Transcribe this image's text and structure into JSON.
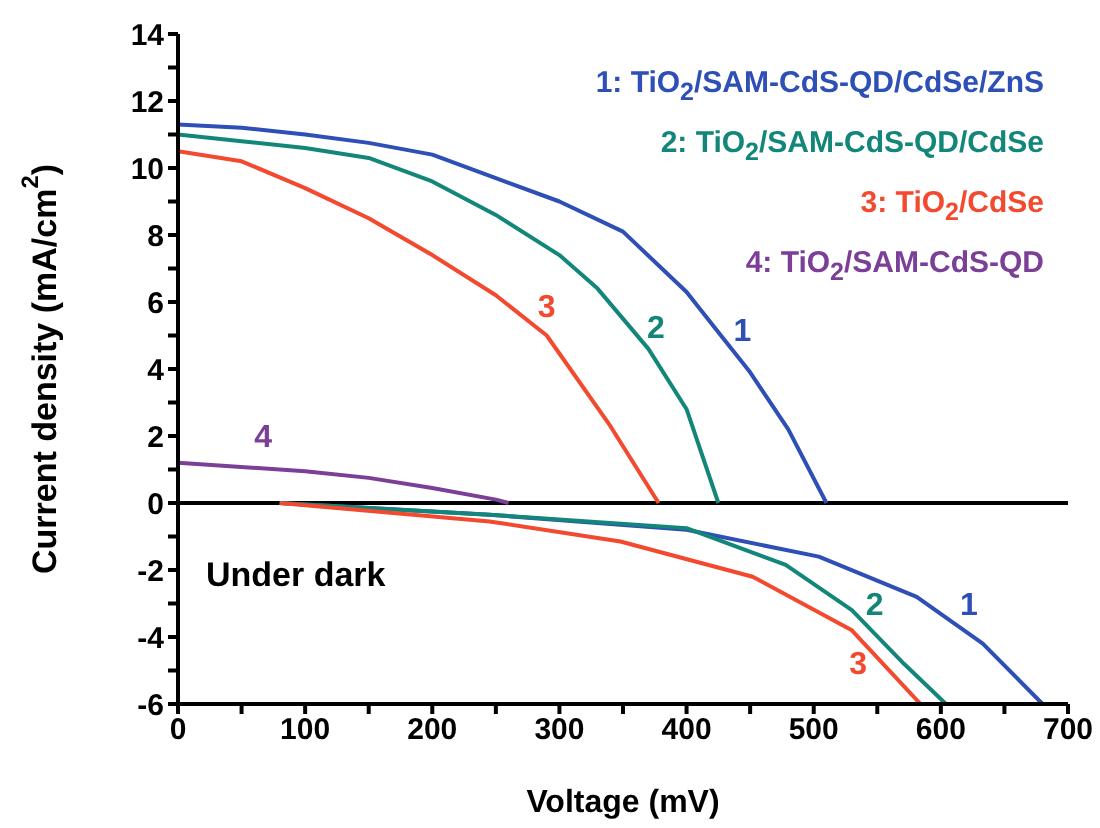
{
  "chart_data": {
    "type": "line",
    "xlabel": "Voltage (mV)",
    "ylabel": "Current density (mA/cm$^{2}$)",
    "xlim": [
      0,
      700
    ],
    "xticks": [
      0,
      {
        "value": 50,
        "label": null
      },
      100,
      {
        "value": 150,
        "label": null
      },
      200,
      {
        "value": 250,
        "label": null
      },
      300,
      {
        "value": 350,
        "label": null
      },
      400,
      {
        "value": 450,
        "label": null
      },
      500,
      {
        "value": 550,
        "label": null
      },
      600,
      {
        "value": 650,
        "label": null
      },
      700
    ],
    "ylim": [
      -6,
      14
    ],
    "yticks": [
      -6,
      {
        "value": -5,
        "label": null
      },
      -4,
      {
        "value": -3,
        "label": null
      },
      -2,
      {
        "value": -1,
        "label": null
      },
      0,
      {
        "value": 1,
        "label": null
      },
      2,
      {
        "value": 3,
        "label": null
      },
      4,
      {
        "value": 5,
        "label": null
      },
      6,
      {
        "value": 7,
        "label": null
      },
      8,
      {
        "value": 9,
        "label": null
      },
      10,
      {
        "value": 11,
        "label": null
      },
      12,
      {
        "value": 13,
        "label": null
      },
      14
    ],
    "grid": false,
    "legend": "top right",
    "marker": "none",
    "line_style": "solid",
    "ref_lines": [
      {
        "axis": "y",
        "value": 0,
        "color": "#000000"
      }
    ],
    "series": [
      {
        "name": "1: TiO$_{2}$/SAM-CdS-QD/CdSe/ZnS",
        "color": "#2e4fb5",
        "x": [
          0,
          50,
          100,
          150,
          200,
          250,
          300,
          350,
          400,
          425,
          450,
          480,
          510
        ],
        "values": [
          11.3,
          11.2,
          11.0,
          10.75,
          10.4,
          9.7,
          9.0,
          8.1,
          6.3,
          5.1,
          3.9,
          2.2,
          0
        ]
      },
      {
        "name": "2: TiO$_{2}$/SAM-CdS-QD/CdSe",
        "color": "#13867a",
        "x": [
          0,
          50,
          100,
          150,
          200,
          250,
          300,
          330,
          370,
          400,
          425
        ],
        "values": [
          11.0,
          10.8,
          10.6,
          10.3,
          9.6,
          8.6,
          7.4,
          6.4,
          4.6,
          2.8,
          0
        ]
      },
      {
        "name": "3: TiO$_{2}$/CdSe",
        "color": "#f2492f",
        "x": [
          0,
          50,
          100,
          150,
          200,
          250,
          290,
          340,
          378
        ],
        "values": [
          10.5,
          10.2,
          9.4,
          8.5,
          7.4,
          6.2,
          5.0,
          2.3,
          0
        ]
      },
      {
        "name": "4: TiO$_{2}$/SAM-CdS-QD",
        "color": "#7b3f98",
        "x": [
          0,
          100,
          150,
          200,
          250,
          260
        ],
        "values": [
          1.2,
          0.95,
          0.75,
          0.45,
          0.1,
          0
        ]
      },
      {
        "color": "#2e4fb5",
        "x": [
          80,
          245,
          400,
          504,
          581,
          633,
          680
        ],
        "values": [
          0,
          -0.35,
          -0.8,
          -1.6,
          -2.8,
          -4.2,
          -6
        ]
      },
      {
        "color": "#13867a",
        "x": [
          80,
          245,
          400,
          478,
          530,
          571,
          604
        ],
        "values": [
          0,
          -0.35,
          -0.75,
          -1.85,
          -3.2,
          -4.8,
          -6
        ]
      },
      {
        "color": "#f2492f",
        "x": [
          80,
          245,
          348,
          452,
          530,
          584
        ],
        "values": [
          0,
          -0.55,
          -1.15,
          -2.2,
          -3.8,
          -6
        ]
      }
    ],
    "annotations": [
      {
        "text": "1",
        "x": 425,
        "y": 5.1
      },
      {
        "text": "2",
        "x": 357,
        "y": 5.2
      },
      {
        "text": "3",
        "x": 290,
        "y": 5.0
      },
      {
        "text": "4",
        "x": 67,
        "y": 1.1
      },
      {
        "text": "1",
        "x": 622,
        "y": -3.9
      },
      {
        "text": "2",
        "x": 548,
        "y": -3.9
      },
      {
        "text": "3",
        "x": 535,
        "y": -4.0
      },
      "Under dark"
    ]
  }
}
